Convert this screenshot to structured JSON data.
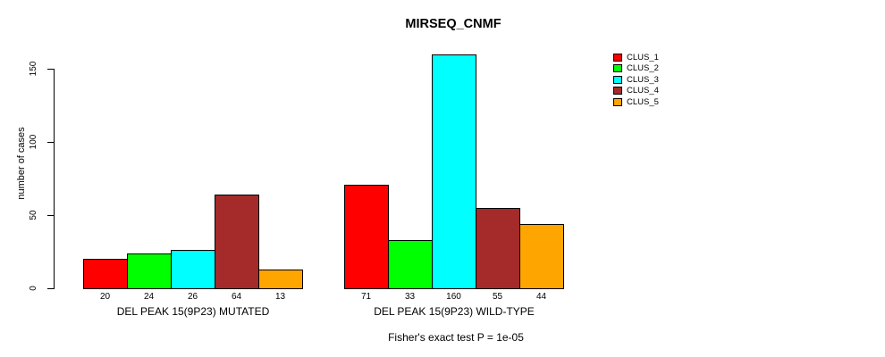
{
  "chart_data": {
    "type": "bar",
    "title": "MIRSEQ_CNMF",
    "ylabel": "number of cases",
    "footer": "Fisher's exact test P = 1e-05",
    "groups": [
      "DEL PEAK 15(9P23) MUTATED",
      "DEL PEAK 15(9P23) WILD-TYPE"
    ],
    "series": [
      {
        "name": "CLUS_1",
        "color": "#FF0000",
        "values": [
          20,
          71
        ]
      },
      {
        "name": "CLUS_2",
        "color": "#00FF00",
        "values": [
          24,
          33
        ]
      },
      {
        "name": "CLUS_3",
        "color": "#00FFFF",
        "values": [
          26,
          160
        ]
      },
      {
        "name": "CLUS_4",
        "color": "#A52A2A",
        "values": [
          64,
          55
        ]
      },
      {
        "name": "CLUS_5",
        "color": "#FFA500",
        "values": [
          13,
          44
        ]
      }
    ],
    "yticks": [
      0,
      50,
      100,
      150
    ],
    "ylim": [
      0,
      150
    ],
    "bar_value_labels": true,
    "legend_position": "top-right",
    "grid": false,
    "background_color": "#FFFFFF",
    "axis_color": "#000000"
  }
}
